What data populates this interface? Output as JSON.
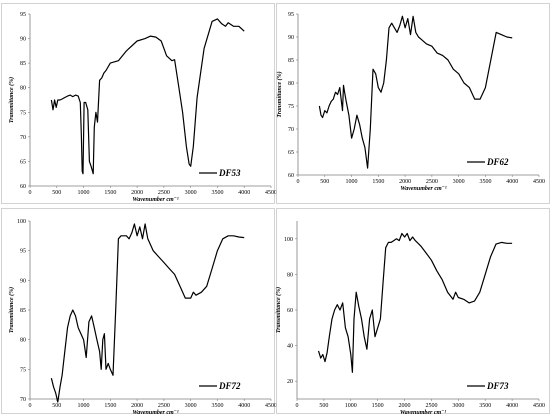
{
  "chart_data": [
    {
      "type": "line",
      "ylabel": "Transmittance (%)",
      "xlabel": "Wavenumber cm⁻¹",
      "legend": "DF53",
      "legend_position": "bottom-right",
      "grid": false,
      "xlim": [
        0,
        4500
      ],
      "ylim": [
        60,
        95
      ],
      "xticks": [
        0,
        500,
        1000,
        1500,
        2000,
        2500,
        3000,
        3500,
        4000,
        4500
      ],
      "yticks": [
        60,
        65,
        70,
        75,
        80,
        85,
        90,
        95
      ],
      "series": [
        {
          "x": [
            400,
            430,
            460,
            490,
            520,
            560,
            600,
            650,
            700,
            750,
            800,
            850,
            900,
            940,
            960,
            975,
            990,
            1010,
            1040,
            1080,
            1110,
            1140,
            1180,
            1200,
            1230,
            1260,
            1300,
            1340,
            1380,
            1420,
            1500,
            1650,
            1800,
            2000,
            2150,
            2250,
            2350,
            2450,
            2550,
            2650,
            2700,
            2780,
            2850,
            2920,
            2970,
            3000,
            3050,
            3120,
            3250,
            3400,
            3500,
            3580,
            3650,
            3700,
            3800,
            3900,
            4000
          ],
          "y": [
            77.5,
            75.5,
            77.5,
            76,
            77.5,
            77.5,
            77.7,
            78,
            78.3,
            78.5,
            78.2,
            78.5,
            78.3,
            77,
            70,
            63,
            62.5,
            77,
            77,
            75.5,
            65,
            64,
            62.5,
            72,
            75,
            73,
            81.5,
            82,
            83,
            83.5,
            85,
            85.5,
            87.5,
            89.5,
            90,
            90.5,
            90.3,
            89.5,
            86.5,
            85.5,
            85.7,
            80,
            75,
            68,
            64.5,
            64,
            68,
            78,
            88,
            93.5,
            94,
            93,
            92.5,
            93.2,
            92.5,
            92.5,
            91.5
          ]
        }
      ]
    },
    {
      "type": "line",
      "ylabel": "Transmittance (%)",
      "xlabel": "Wavenumber cm⁻¹",
      "legend": "DF62",
      "legend_position": "bottom-right",
      "grid": false,
      "xlim": [
        0,
        4500
      ],
      "ylim": [
        60,
        95
      ],
      "xticks": [
        0,
        500,
        1000,
        1500,
        2000,
        2500,
        3000,
        3500,
        4000,
        4500
      ],
      "yticks": [
        60,
        65,
        70,
        75,
        80,
        85,
        90,
        95
      ],
      "series": [
        {
          "x": [
            400,
            430,
            460,
            500,
            540,
            580,
            620,
            660,
            700,
            740,
            780,
            810,
            830,
            850,
            870,
            900,
            950,
            1000,
            1050,
            1100,
            1150,
            1200,
            1250,
            1300,
            1350,
            1400,
            1450,
            1500,
            1550,
            1600,
            1650,
            1700,
            1750,
            1800,
            1850,
            1900,
            1950,
            2000,
            2050,
            2100,
            2150,
            2200,
            2250,
            2300,
            2400,
            2500,
            2600,
            2700,
            2800,
            2900,
            3000,
            3100,
            3200,
            3300,
            3400,
            3500,
            3600,
            3700,
            3800,
            3900,
            4000
          ],
          "y": [
            75,
            73,
            72.5,
            74,
            73.5,
            75,
            76,
            76.5,
            78,
            77.5,
            79,
            76,
            74,
            79.5,
            78,
            76,
            73,
            68,
            70,
            73,
            71,
            68,
            66,
            61.5,
            70,
            83,
            82,
            79,
            78,
            80,
            85,
            92,
            93,
            92,
            91,
            92.5,
            94.5,
            92,
            94,
            90.5,
            94.5,
            91,
            90,
            89.5,
            88.5,
            88,
            86.5,
            86,
            85,
            83,
            82,
            80,
            79,
            76.5,
            76.5,
            79,
            85,
            91,
            90.5,
            90,
            89.8
          ]
        }
      ]
    },
    {
      "type": "line",
      "ylabel": "Transmittance (%)",
      "xlabel": "Wavenumber cm⁻¹",
      "legend": "DF72",
      "legend_position": "bottom-right",
      "grid": false,
      "xlim": [
        0,
        4500
      ],
      "ylim": [
        70,
        100
      ],
      "xticks": [
        0,
        500,
        1000,
        1500,
        2000,
        2500,
        3000,
        3500,
        4000,
        4500
      ],
      "yticks": [
        70,
        75,
        80,
        85,
        90,
        95,
        100
      ],
      "series": [
        {
          "x": [
            400,
            440,
            480,
            520,
            560,
            600,
            650,
            700,
            750,
            800,
            850,
            900,
            950,
            1000,
            1050,
            1100,
            1150,
            1200,
            1250,
            1300,
            1330,
            1360,
            1390,
            1420,
            1460,
            1500,
            1550,
            1600,
            1650,
            1700,
            1750,
            1800,
            1850,
            1900,
            1950,
            2000,
            2050,
            2100,
            2150,
            2200,
            2300,
            2400,
            2500,
            2600,
            2700,
            2800,
            2900,
            3000,
            3050,
            3100,
            3200,
            3300,
            3400,
            3500,
            3600,
            3700,
            3800,
            3900,
            4000
          ],
          "y": [
            73.5,
            72,
            71,
            69.5,
            72,
            74,
            78,
            82,
            84,
            85,
            84,
            82,
            81,
            80,
            77,
            83,
            84,
            82,
            80,
            78,
            75,
            80,
            81,
            75,
            76,
            75,
            74,
            85,
            97,
            97.5,
            97.5,
            97.5,
            97,
            98,
            99.5,
            97.5,
            99,
            97,
            99.5,
            97,
            95,
            94,
            93,
            92,
            91,
            89,
            87,
            87,
            88,
            87.5,
            88,
            89,
            92,
            95,
            97,
            97.5,
            97.5,
            97.3,
            97.2
          ]
        }
      ]
    },
    {
      "type": "line",
      "ylabel": "Transmittance (%)",
      "xlabel": "Wavenumber cm⁻¹",
      "legend": "DF73",
      "legend_position": "bottom-right",
      "grid": false,
      "xlim": [
        0,
        4500
      ],
      "ylim": [
        10,
        110
      ],
      "xticks": [
        0,
        500,
        1000,
        1500,
        2000,
        2500,
        3000,
        3500,
        4000,
        4500
      ],
      "yticks": [
        20,
        40,
        60,
        80,
        100
      ],
      "series": [
        {
          "x": [
            400,
            440,
            480,
            520,
            560,
            600,
            650,
            700,
            750,
            800,
            850,
            900,
            950,
            1000,
            1030,
            1060,
            1100,
            1150,
            1200,
            1250,
            1300,
            1350,
            1400,
            1450,
            1500,
            1550,
            1600,
            1650,
            1700,
            1750,
            1800,
            1850,
            1900,
            1950,
            2000,
            2050,
            2100,
            2150,
            2200,
            2300,
            2400,
            2500,
            2600,
            2700,
            2800,
            2900,
            2950,
            3000,
            3100,
            3200,
            3300,
            3400,
            3500,
            3600,
            3700,
            3800,
            3900,
            4000
          ],
          "y": [
            37,
            33,
            35,
            31,
            36,
            45,
            55,
            60,
            63,
            60,
            64,
            50,
            45,
            35,
            25,
            55,
            70,
            62,
            55,
            45,
            38,
            55,
            60,
            45,
            50,
            55,
            75,
            95,
            98,
            98,
            99,
            100,
            99,
            103,
            101,
            103,
            99,
            101,
            99,
            96,
            92,
            88,
            82,
            77,
            70,
            66,
            70,
            67,
            66,
            64,
            65,
            70,
            80,
            90,
            97,
            98,
            97.5,
            97.5
          ]
        }
      ]
    }
  ]
}
